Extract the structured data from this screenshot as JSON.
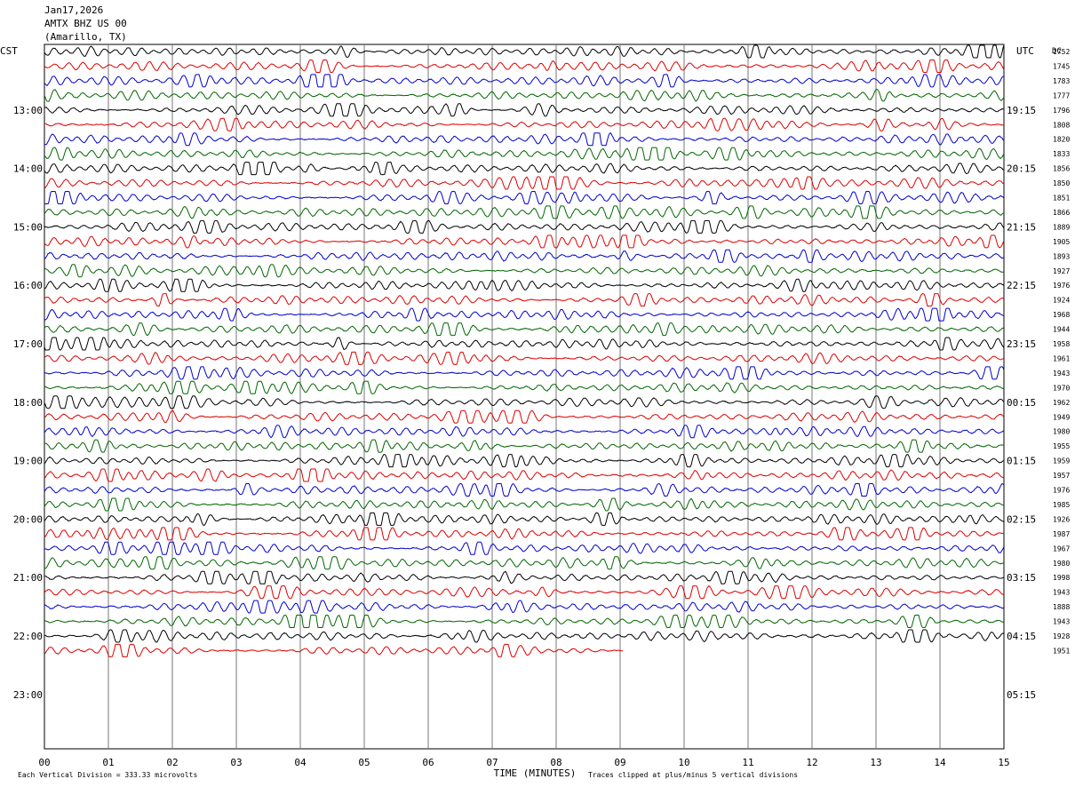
{
  "header": {
    "date": "Jan17,2026",
    "station": "AMTX BHZ US 00",
    "location": "(Amarillo, TX)"
  },
  "chart_data": {
    "type": "line",
    "title": "",
    "left_axis_label": "CST",
    "right_axis_label": "UTC",
    "right_corner_label": "DC",
    "left_times": [
      "13:00",
      "14:00",
      "15:00",
      "16:00",
      "17:00",
      "18:00",
      "19:00",
      "20:00",
      "21:00",
      "22:00",
      "23:00"
    ],
    "right_times": [
      "19:15",
      "20:15",
      "21:15",
      "22:15",
      "23:15",
      "00:15",
      "01:15",
      "02:15",
      "03:15",
      "04:15",
      "05:15"
    ],
    "x_ticks": [
      "00",
      "01",
      "02",
      "03",
      "04",
      "05",
      "06",
      "07",
      "08",
      "09",
      "10",
      "11",
      "12",
      "13",
      "14",
      "15"
    ],
    "xlabel": "TIME (MINUTES)",
    "xlim": [
      0,
      15
    ],
    "trace_colors": [
      "#000000",
      "#dd0000",
      "#0000cc",
      "#006600"
    ],
    "dc_offsets": [
      "1752",
      "1745",
      "1783",
      "1777",
      "1796",
      "1808",
      "1820",
      "1833",
      "1856",
      "1850",
      "1851",
      "1866",
      "1889",
      "1905",
      "1893",
      "1927",
      "1976",
      "1924",
      "1968",
      "1944",
      "1958",
      "1961",
      "1943",
      "1970",
      "1962",
      "1949",
      "1980",
      "1955",
      "1959",
      "1957",
      "1976",
      "1985",
      "1926",
      "1987",
      "1967",
      "1980",
      "1998",
      "1943",
      "1888",
      "1943",
      "1928",
      "1951"
    ],
    "trace_count": 42,
    "last_trace_minutes": 9.05,
    "grid": true,
    "footer_left": "Each Vertical Division =  333.33 microvolts",
    "footer_right": "Traces clipped at plus/minus 5 vertical divisions"
  }
}
